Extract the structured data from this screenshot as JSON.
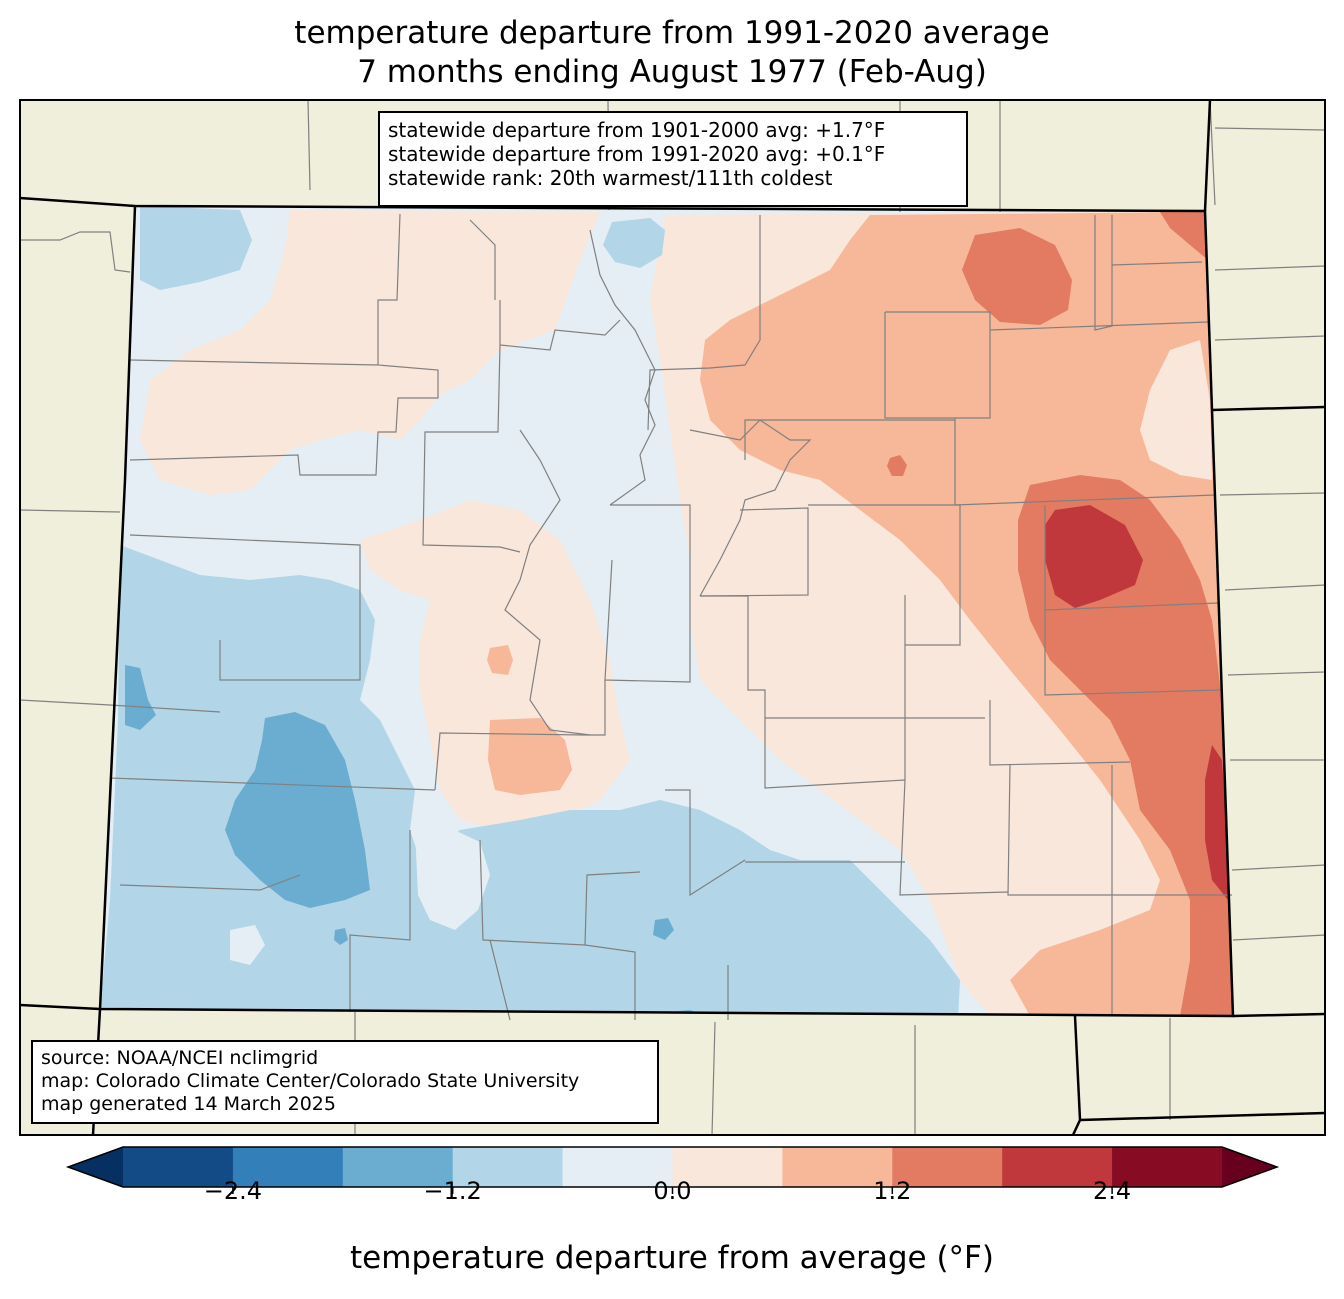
{
  "title": {
    "line1": "temperature departure from 1991-2020 average",
    "line2": "7 months ending August 1977 (Feb-Aug)"
  },
  "stats": {
    "line1": "statewide departure from 1901-2000 avg: +1.7°F",
    "line2": "statewide departure from 1991-2020 avg: +0.1°F",
    "line3": "statewide rank: 20th warmest/111th coldest"
  },
  "credits": {
    "line1": "source: NOAA/NCEI nclimgrid",
    "line2": "map: Colorado Climate Center/Colorado State University",
    "line3": "map generated 14 March 2025"
  },
  "colorbar": {
    "label": "temperature departure from average (°F)",
    "min": -3.0,
    "max": 3.0,
    "step": 0.6,
    "extend": "both",
    "ticks": [
      "−2.4",
      "−1.2",
      "0.0",
      "1.2",
      "2.4"
    ],
    "tick_values": [
      -2.4,
      -1.2,
      0.0,
      1.2,
      2.4
    ],
    "colors": [
      "#053061",
      "#134b87",
      "#327fba",
      "#6bacd1",
      "#b2d6e8",
      "#e4eef4",
      "#fae7dc",
      "#f7b799",
      "#e27b62",
      "#c0383b",
      "#860b23",
      "#67001f"
    ]
  },
  "map_colors": {
    "land_outside": "#efefdc",
    "state_border": "#000000",
    "county_line": "#808080"
  }
}
